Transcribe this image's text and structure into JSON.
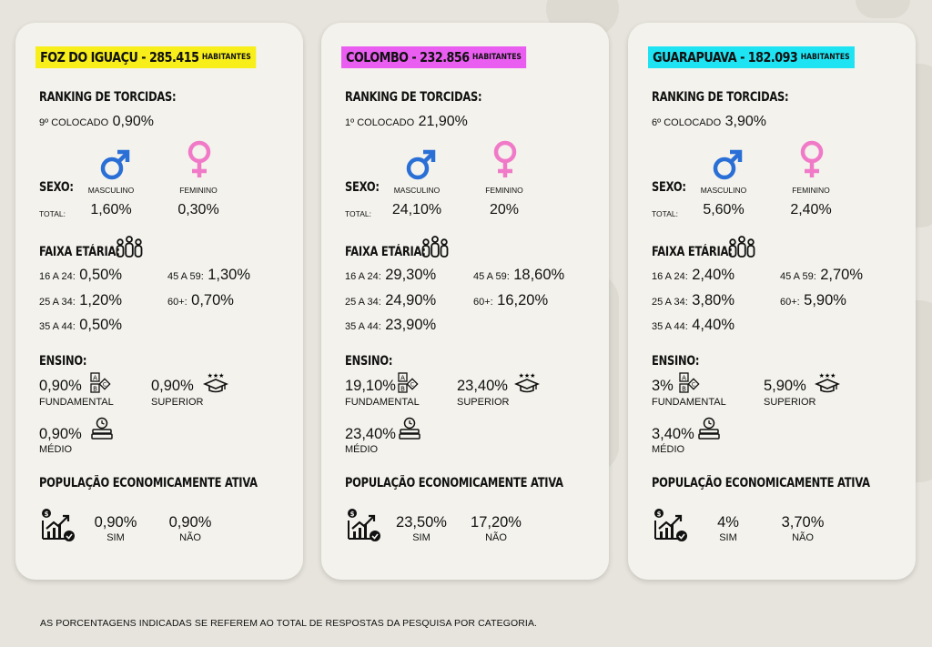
{
  "cards": [
    {
      "title": "FOZ DO IGUAÇU - 285.415",
      "habitantes": "HABITANTES",
      "ranking_label": "RANKING DE TORCIDAS:",
      "ranking_pos": "9º COLOCADO",
      "ranking_value": "0,90%",
      "sexo_label": "SEXO:",
      "total_label": "TOTAL:",
      "masc_label": "MASCULINO",
      "fem_label": "FEMININO",
      "masc_value": "1,60%",
      "fem_value": "0,30%",
      "faixa_label": "FAIXA ETÁRIA:",
      "age": {
        "a16_label": "16 A 24:",
        "a16": "0,50%",
        "a25_label": "25 A 34:",
        "a25": "1,20%",
        "a35_label": "35 A 44:",
        "a35": "0,50%",
        "a45_label": "45 A 59:",
        "a45": "1,30%",
        "a60_label": "60+:",
        "a60": "0,70%"
      },
      "ensino_label": "ENSINO:",
      "fundamental_value": "0,90%",
      "fundamental_label": "FUNDAMENTAL",
      "superior_value": "0,90%",
      "superior_label": "SUPERIOR",
      "medio_value": "0,90%",
      "medio_label": "MÉDIO",
      "pea_label": "POPULAÇÃO ECONOMICAMENTE ATIVA",
      "sim_value": "0,90%",
      "sim_label": "SIM",
      "nao_value": "0,90%",
      "nao_label": "NÃO"
    },
    {
      "title": "COLOMBO - 232.856",
      "habitantes": "HABITANTES",
      "ranking_label": "RANKING DE TORCIDAS:",
      "ranking_pos": "1º COLOCADO",
      "ranking_value": "21,90%",
      "sexo_label": "SEXO:",
      "total_label": "TOTAL:",
      "masc_label": "MASCULINO",
      "fem_label": "FEMININO",
      "masc_value": "24,10%",
      "fem_value": "20%",
      "faixa_label": "FAIXA ETÁRIA:",
      "age": {
        "a16_label": "16 A 24:",
        "a16": "29,30%",
        "a25_label": "25 A 34:",
        "a25": "24,90%",
        "a35_label": "35 A 44:",
        "a35": "23,90%",
        "a45_label": "45 A 59:",
        "a45": "18,60%",
        "a60_label": "60+:",
        "a60": "16,20%"
      },
      "ensino_label": "ENSINO:",
      "fundamental_value": "19,10%",
      "fundamental_label": "FUNDAMENTAL",
      "superior_value": "23,40%",
      "superior_label": "SUPERIOR",
      "medio_value": "23,40%",
      "medio_label": "MÉDIO",
      "pea_label": "POPULAÇÃO ECONOMICAMENTE ATIVA",
      "sim_value": "23,50%",
      "sim_label": "SIM",
      "nao_value": "17,20%",
      "nao_label": "NÃO"
    },
    {
      "title": "GUARAPUAVA - 182.093",
      "habitantes": "HABITANTES",
      "ranking_label": "RANKING DE TORCIDAS:",
      "ranking_pos": "6º COLOCADO",
      "ranking_value": "3,90%",
      "sexo_label": "SEXO:",
      "total_label": "TOTAL:",
      "masc_label": "MASCULINO",
      "fem_label": "FEMININO",
      "masc_value": "5,60%",
      "fem_value": "2,40%",
      "faixa_label": "FAIXA ETÁRIA:",
      "age": {
        "a16_label": "16 A 24:",
        "a16": "2,40%",
        "a25_label": "25 A 34:",
        "a25": "3,80%",
        "a35_label": "35 A 44:",
        "a35": "4,40%",
        "a45_label": "45 A 59:",
        "a45": "2,70%",
        "a60_label": "60+:",
        "a60": "5,90%"
      },
      "ensino_label": "ENSINO:",
      "fundamental_value": "3%",
      "fundamental_label": "FUNDAMENTAL",
      "superior_value": "5,90%",
      "superior_label": "SUPERIOR",
      "medio_value": "3,40%",
      "medio_label": "MÉDIO",
      "pea_label": "POPULAÇÃO ECONOMICAMENTE ATIVA",
      "sim_value": "4%",
      "sim_label": "SIM",
      "nao_value": "3,70%",
      "nao_label": "NÃO"
    }
  ],
  "colors": {
    "card0_title_bg": "#f7ee1a",
    "card1_title_bg": "#e95ef0",
    "card2_title_bg": "#1ee3f3",
    "male_icon": "#2a6fd6",
    "female_icon": "#f17ac8"
  },
  "icons": [
    "male-symbol-icon",
    "female-symbol-icon",
    "people-group-icon",
    "abc-blocks-icon",
    "graduation-cap-icon",
    "books-clock-icon",
    "money-growth-chart-icon"
  ],
  "footer": "AS PORCENTAGENS INDICADAS SE REFEREM AO TOTAL DE RESPOSTAS DA PESQUISA POR CATEGORIA."
}
